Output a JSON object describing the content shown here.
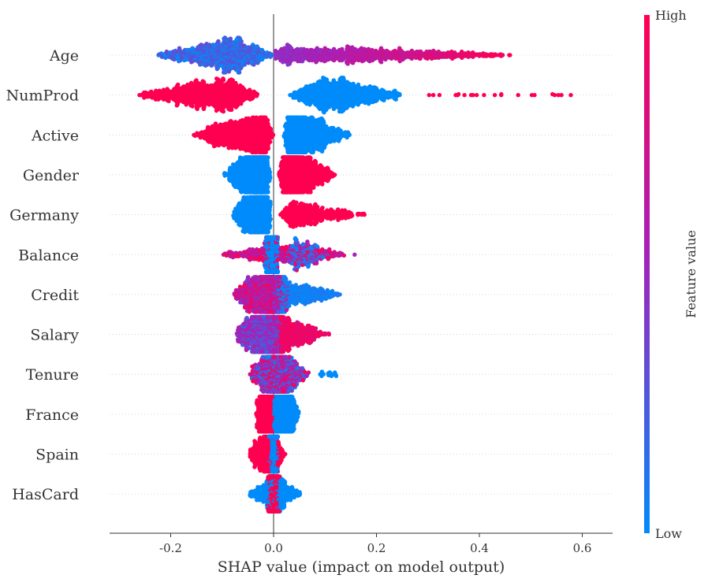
{
  "chart_data": {
    "type": "scatter",
    "subtype": "beeswarm",
    "xlabel": "SHAP value (impact on model output)",
    "xlim": [
      -0.32,
      0.66
    ],
    "xticks": [
      -0.2,
      0.0,
      0.2,
      0.4,
      0.6
    ],
    "xtick_labels": [
      "-0.2",
      "0.0",
      "0.2",
      "0.4",
      "0.6"
    ],
    "colorbar": {
      "label": "Feature value",
      "high": "High",
      "low": "Low",
      "low_color": "#008bfb",
      "mid_color": "#a81fb8",
      "high_color": "#ff0051"
    },
    "grid": "dotted horizontal per feature",
    "features": [
      {
        "name": "Age",
        "segments": [
          {
            "min": -0.23,
            "max": 0.0,
            "mode": -0.08,
            "value": [
              0.0,
              0.35
            ],
            "coloring": "random",
            "density": "high"
          },
          {
            "min": 0.0,
            "max": 0.48,
            "mode": 0.02,
            "value": [
              0.45,
              1.0
            ],
            "coloring": "gradient",
            "density": "high"
          }
        ]
      },
      {
        "name": "NumProd",
        "segments": [
          {
            "min": -0.27,
            "max": -0.03,
            "mode": -0.09,
            "value": [
              1,
              1
            ],
            "coloring": "random",
            "density": "high"
          },
          {
            "min": 0.025,
            "max": 0.25,
            "mode": 0.1,
            "value": [
              0,
              0
            ],
            "coloring": "random",
            "density": "high"
          },
          {
            "min": 0.25,
            "max": 0.61,
            "mode": 0.4,
            "value": [
              1,
              1
            ],
            "coloring": "random",
            "density": "sparse"
          }
        ]
      },
      {
        "name": "Active",
        "segments": [
          {
            "min": -0.16,
            "max": 0.0,
            "mode": -0.02,
            "value": [
              1,
              1
            ],
            "coloring": "random",
            "density": "high"
          },
          {
            "min": 0.02,
            "max": 0.15,
            "mode": 0.03,
            "value": [
              0,
              0
            ],
            "coloring": "random",
            "density": "high"
          }
        ]
      },
      {
        "name": "Gender",
        "segments": [
          {
            "min": -0.1,
            "max": -0.005,
            "mode": -0.02,
            "value": [
              0,
              0
            ],
            "coloring": "random",
            "density": "high"
          },
          {
            "min": 0.01,
            "max": 0.12,
            "mode": 0.02,
            "value": [
              1,
              1
            ],
            "coloring": "random",
            "density": "high"
          }
        ]
      },
      {
        "name": "Germany",
        "segments": [
          {
            "min": -0.08,
            "max": -0.005,
            "mode": -0.015,
            "value": [
              0,
              0
            ],
            "coloring": "random",
            "density": "high"
          },
          {
            "min": 0.01,
            "max": 0.185,
            "mode": 0.04,
            "value": [
              1,
              1
            ],
            "coloring": "random",
            "density": "medium"
          }
        ]
      },
      {
        "name": "Balance",
        "segments": [
          {
            "min": -0.02,
            "max": 0.01,
            "mode": 0.0,
            "value": [
              0,
              0
            ],
            "coloring": "random",
            "density": "medium"
          },
          {
            "min": -0.11,
            "max": 0.16,
            "mode": 0.01,
            "value": [
              0.5,
              1
            ],
            "coloring": "random",
            "density": "medium"
          },
          {
            "min": 0.02,
            "max": 0.12,
            "mode": 0.04,
            "value": [
              0,
              0.3
            ],
            "coloring": "random",
            "density": "low"
          }
        ]
      },
      {
        "name": "Credit",
        "segments": [
          {
            "min": -0.08,
            "max": 0.03,
            "mode": -0.005,
            "value": [
              0.4,
              1
            ],
            "coloring": "random",
            "density": "high"
          },
          {
            "min": 0.0,
            "max": 0.135,
            "mode": 0.01,
            "value": [
              0,
              0.1
            ],
            "coloring": "random",
            "density": "medium"
          }
        ]
      },
      {
        "name": "Salary",
        "segments": [
          {
            "min": -0.075,
            "max": 0.02,
            "mode": -0.005,
            "value": [
              0.2,
              0.7
            ],
            "coloring": "random",
            "density": "high"
          },
          {
            "min": 0.0,
            "max": 0.11,
            "mode": 0.01,
            "value": [
              0.8,
              1
            ],
            "coloring": "random",
            "density": "medium"
          }
        ]
      },
      {
        "name": "Tenure",
        "segments": [
          {
            "min": -0.05,
            "max": 0.07,
            "mode": 0.0,
            "value": [
              0,
              1
            ],
            "coloring": "random",
            "density": "high"
          },
          {
            "min": 0.08,
            "max": 0.13,
            "mode": 0.11,
            "value": [
              0,
              0
            ],
            "coloring": "random",
            "density": "sparse"
          }
        ]
      },
      {
        "name": "France",
        "segments": [
          {
            "min": -0.035,
            "max": 0.0,
            "mode": -0.005,
            "value": [
              1,
              1
            ],
            "coloring": "random",
            "density": "high"
          },
          {
            "min": 0.0,
            "max": 0.05,
            "mode": 0.005,
            "value": [
              0,
              0
            ],
            "coloring": "random",
            "density": "high"
          }
        ]
      },
      {
        "name": "Spain",
        "segments": [
          {
            "min": -0.01,
            "max": 0.01,
            "mode": 0.0,
            "value": [
              0,
              0
            ],
            "coloring": "random",
            "density": "high"
          },
          {
            "min": -0.05,
            "max": 0.025,
            "mode": -0.01,
            "value": [
              1,
              1
            ],
            "coloring": "random",
            "density": "medium"
          }
        ]
      },
      {
        "name": "HasCard",
        "segments": [
          {
            "min": -0.05,
            "max": 0.055,
            "mode": 0.0,
            "value": [
              0,
              0
            ],
            "coloring": "random",
            "density": "medium"
          },
          {
            "min": -0.012,
            "max": 0.012,
            "mode": 0.0,
            "value": [
              1,
              1
            ],
            "coloring": "random",
            "density": "high"
          }
        ]
      }
    ]
  }
}
